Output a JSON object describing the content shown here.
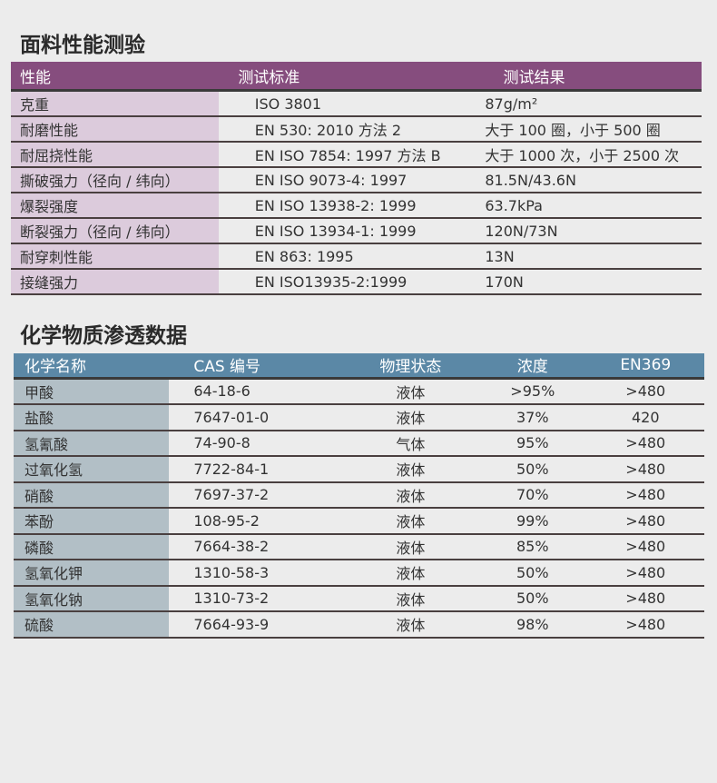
{
  "fabric": {
    "title": "面料性能测验",
    "headers": [
      "性能",
      "测试标准",
      "测试结果"
    ],
    "rows": [
      [
        "克重",
        "ISO 3801",
        "87g/m²"
      ],
      [
        "耐磨性能",
        "EN 530: 2010 方法 2",
        "大于 100 圈，小于 500 圈"
      ],
      [
        "耐屈挠性能",
        "EN ISO 7854: 1997 方法 B",
        "大于 1000 次，小于 2500 次"
      ],
      [
        "撕破强力（径向 / 纬向）",
        "EN ISO 9073-4: 1997",
        "81.5N/43.6N"
      ],
      [
        "爆裂强度",
        "EN ISO 13938-2: 1999",
        "63.7kPa"
      ],
      [
        "断裂强力（径向 / 纬向）",
        "EN ISO 13934-1: 1999",
        "120N/73N"
      ],
      [
        "耐穿刺性能",
        "EN 863: 1995",
        "13N"
      ],
      [
        "接缝强力",
        "EN ISO13935-2:1999",
        "170N"
      ]
    ]
  },
  "chemical": {
    "title": "化学物质渗透数据",
    "headers": [
      "化学名称",
      "CAS 编号",
      "物理状态",
      "浓度",
      "EN369"
    ],
    "rows": [
      [
        "甲酸",
        "64-18-6",
        "液体",
        ">95%",
        ">480"
      ],
      [
        "盐酸",
        "7647-01-0",
        "液体",
        "37%",
        "420"
      ],
      [
        "氢氰酸",
        "74-90-8",
        "气体",
        "95%",
        ">480"
      ],
      [
        "过氧化氢",
        "7722-84-1",
        "液体",
        "50%",
        ">480"
      ],
      [
        "硝酸",
        "7697-37-2",
        "液体",
        "70%",
        ">480"
      ],
      [
        "苯酚",
        "108-95-2",
        "液体",
        "99%",
        ">480"
      ],
      [
        "磷酸",
        "7664-38-2",
        "液体",
        "85%",
        ">480"
      ],
      [
        "氢氧化钾",
        "1310-58-3",
        "液体",
        "50%",
        ">480"
      ],
      [
        "氢氧化钠",
        "1310-73-2",
        "液体",
        "50%",
        ">480"
      ],
      [
        "硫酸",
        "7664-93-9",
        "液体",
        "98%",
        ">480"
      ]
    ]
  }
}
